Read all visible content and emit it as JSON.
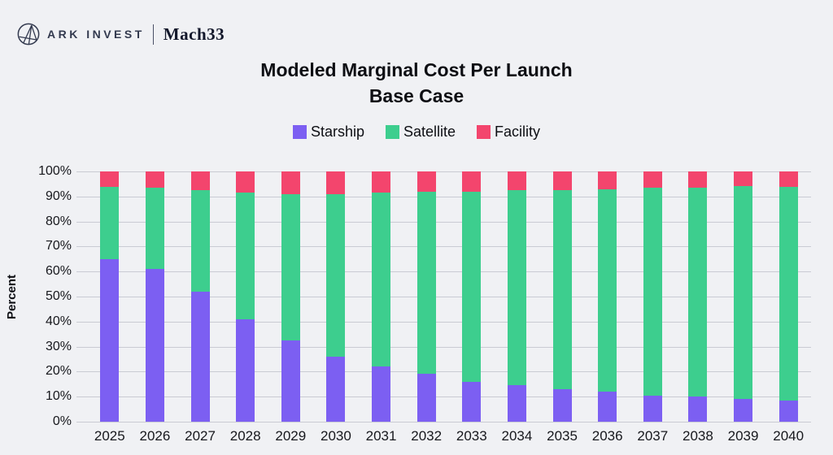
{
  "header": {
    "brand": "ARK INVEST",
    "brand_secondary": "Mach33"
  },
  "title": {
    "line1": "Modeled Marginal Cost Per Launch",
    "line2": "Base Case"
  },
  "colors": {
    "background": "#F0F1F4",
    "gridline": "#C9CBD3",
    "starship": "#7C5FF2",
    "satellite": "#3DCE8E",
    "facility": "#F3456D"
  },
  "chart_data": {
    "type": "bar",
    "stacked": true,
    "title": "Modeled Marginal Cost Per Launch",
    "subtitle": "Base Case",
    "categories": [
      "2025",
      "2026",
      "2027",
      "2028",
      "2029",
      "2030",
      "2031",
      "2032",
      "2033",
      "2034",
      "2035",
      "2036",
      "2037",
      "2038",
      "2039",
      "2040"
    ],
    "series": [
      {
        "name": "Starship",
        "color": "#7C5FF2",
        "values": [
          65,
          61,
          52,
          41,
          32.5,
          26,
          22,
          19,
          16,
          14.5,
          13,
          12,
          10.5,
          10,
          9,
          8.5
        ]
      },
      {
        "name": "Satellite",
        "color": "#3DCE8E",
        "values": [
          29,
          32.5,
          40.5,
          50.5,
          58.5,
          65,
          69.5,
          73,
          76,
          78,
          79.5,
          81,
          83,
          83.5,
          85,
          85.5
        ]
      },
      {
        "name": "Facility",
        "color": "#F3456D",
        "values": [
          6,
          6.5,
          7.5,
          8.5,
          9,
          9,
          8.5,
          8,
          8,
          7.5,
          7.5,
          7,
          6.5,
          6.5,
          6,
          6
        ]
      }
    ],
    "xlabel": "",
    "ylabel": "Percent",
    "ylim": [
      0,
      100
    ],
    "ytick_labels": [
      "0%",
      "10%",
      "20%",
      "30%",
      "40%",
      "50%",
      "60%",
      "70%",
      "80%",
      "90%",
      "100%"
    ],
    "legend_position": "top",
    "grid": true
  }
}
